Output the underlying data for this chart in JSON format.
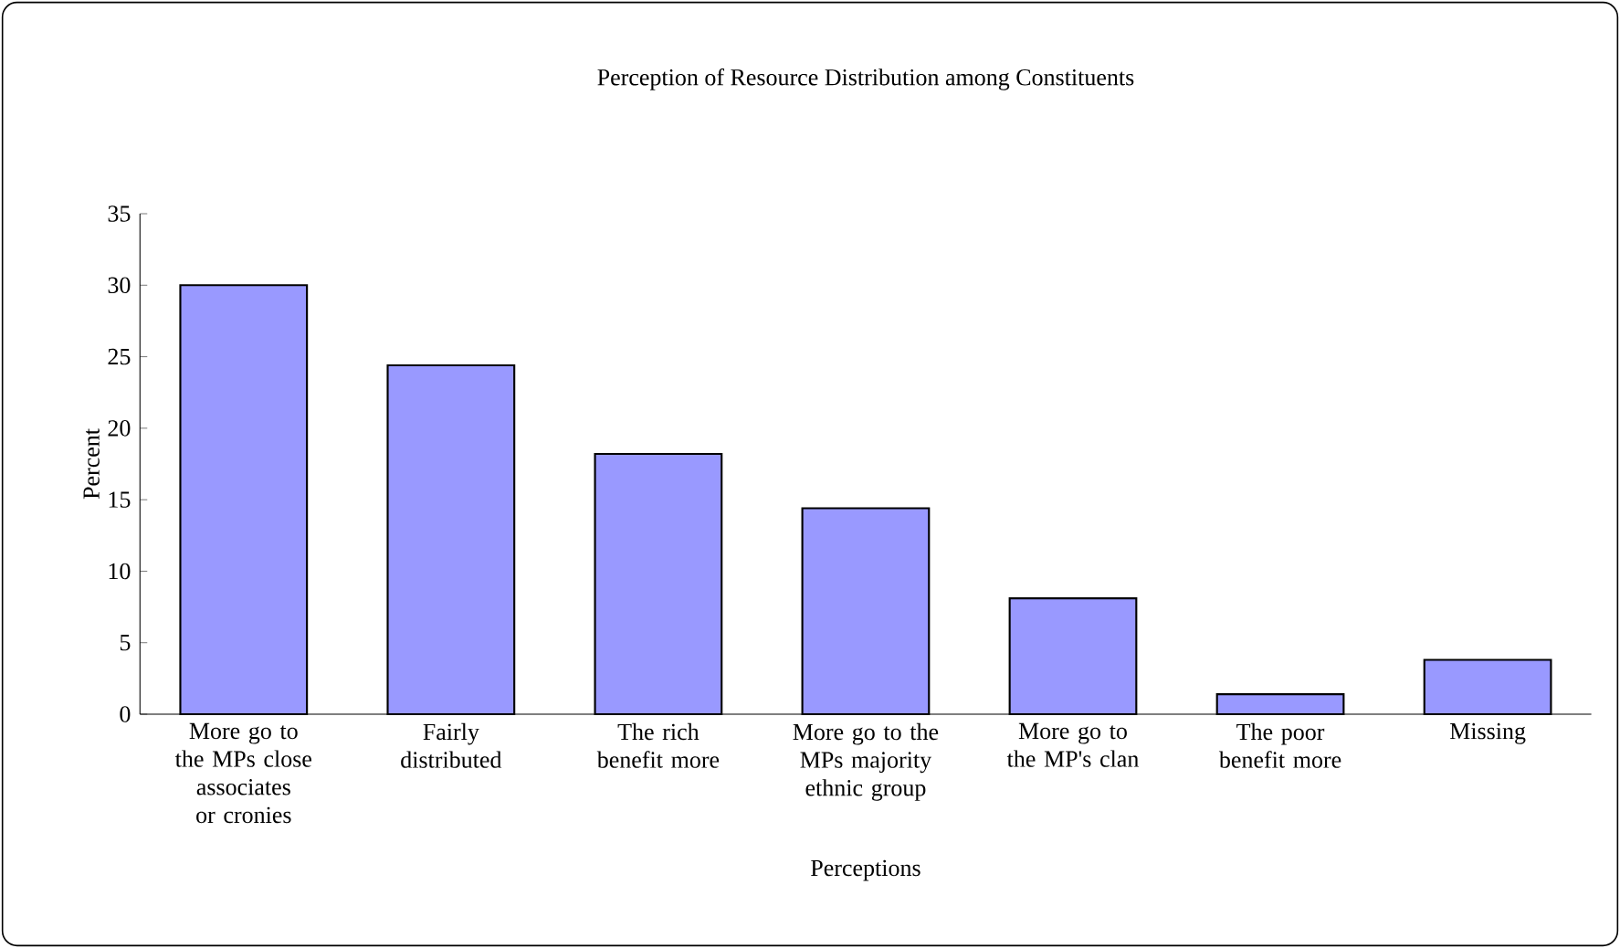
{
  "chart_data": {
    "type": "bar",
    "title": "Perception of Resource Distribution among Constituents",
    "xlabel": "Perceptions",
    "ylabel": "Percent",
    "categories": [
      "More go to the MPs close associates or cronies",
      "Fairly distributed",
      "The rich benefit more",
      "More go to the MPs majority ethnic group",
      "More go to the MP's clan",
      "The poor benefit more",
      "Missing"
    ],
    "values": [
      30.0,
      24.4,
      18.2,
      14.4,
      8.1,
      1.4,
      3.8
    ],
    "color": "#9999ff",
    "ylim": [
      0,
      35
    ],
    "yticks": [
      0,
      5,
      10,
      15,
      20,
      25,
      30,
      35
    ],
    "grid": false
  }
}
